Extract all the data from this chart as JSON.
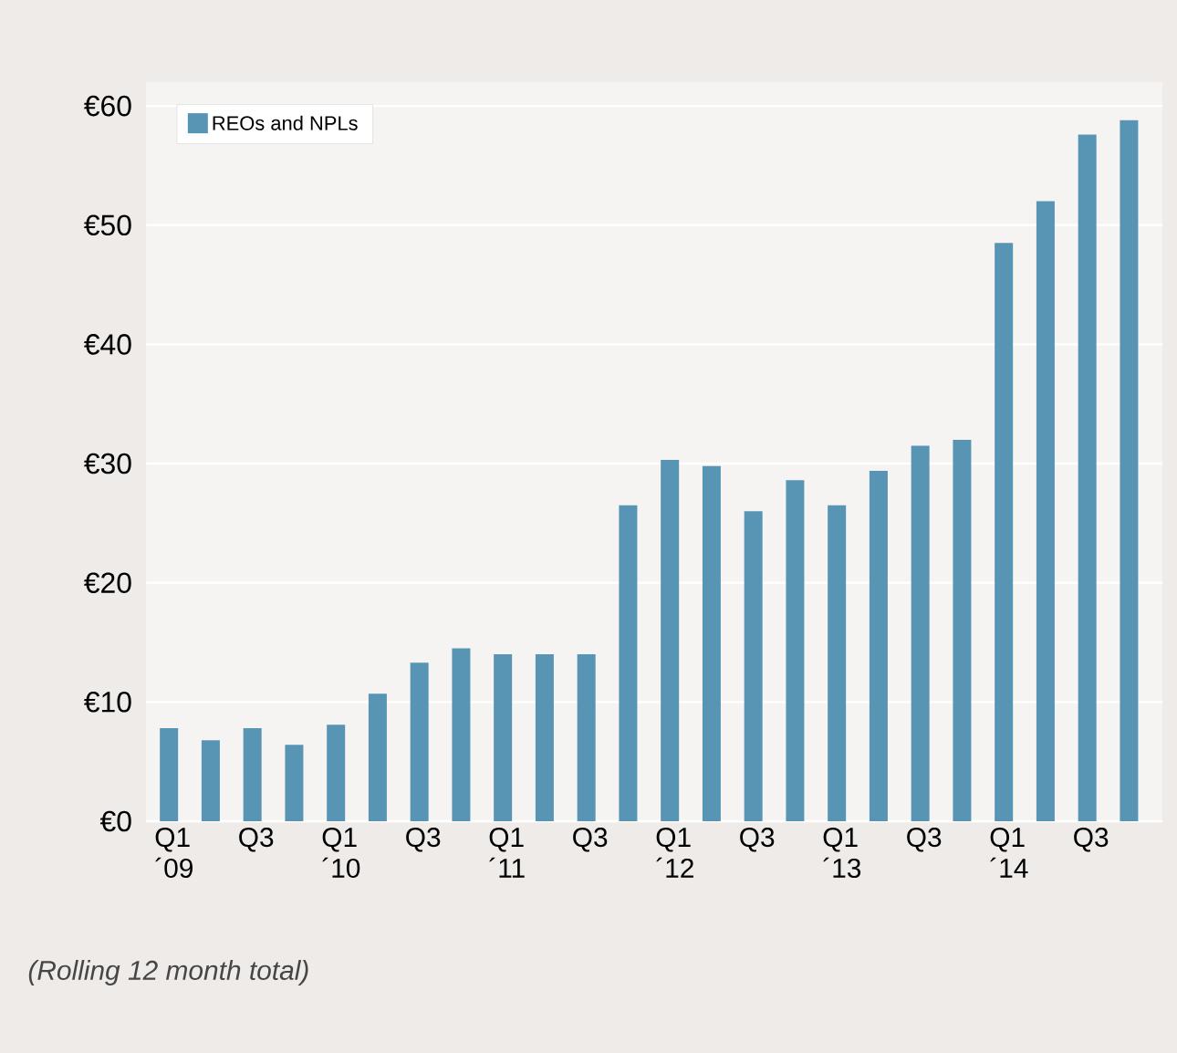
{
  "chart_data": {
    "type": "bar",
    "categories": [
      "Q1 ´09",
      null,
      "Q3",
      null,
      "Q1 ´10",
      null,
      "Q3",
      null,
      "Q1 ´11",
      null,
      "Q3",
      null,
      "Q1 ´12",
      null,
      "Q3",
      null,
      "Q1 ´13",
      null,
      "Q3",
      null,
      "Q1 ´14",
      null,
      "Q3",
      null
    ],
    "series": [
      {
        "name": "REOs and NPLs",
        "color": "#5894b4",
        "values": [
          7.8,
          6.8,
          7.8,
          6.4,
          8.1,
          10.7,
          13.3,
          14.5,
          14.0,
          14.0,
          14.0,
          26.5,
          30.3,
          29.8,
          26.0,
          28.6,
          26.5,
          29.4,
          31.5,
          32.0,
          48.5,
          52.0,
          57.6,
          58.8
        ]
      }
    ],
    "ylim": [
      0,
      62
    ],
    "yticks": [
      {
        "value": 0,
        "label": "€0"
      },
      {
        "value": 10,
        "label": "€10"
      },
      {
        "value": 20,
        "label": "€20"
      },
      {
        "value": 30,
        "label": "€30"
      },
      {
        "value": 40,
        "label": "€40"
      },
      {
        "value": 50,
        "label": "€50"
      },
      {
        "value": 60,
        "label": "€60"
      }
    ],
    "grid": "y",
    "legend": "top left",
    "annotations": [
      "(Rolling 12 month total)"
    ]
  }
}
